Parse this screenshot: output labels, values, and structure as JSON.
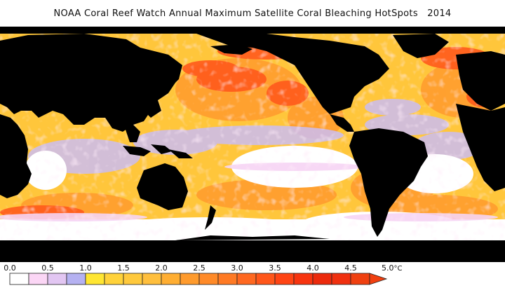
{
  "title": "NOAA Coral Reef Watch Annual Maximum Satellite Coral Bleaching HotSpots   2014",
  "legend": {
    "ticks": [
      "0.0",
      "0.5",
      "1.0",
      "1.5",
      "2.0",
      "2.5",
      "3.0",
      "3.5",
      "4.0",
      "4.5",
      "5.0"
    ],
    "unit": "°C",
    "colors": [
      "#ffffff",
      "#fbd6f5",
      "#e2c6f2",
      "#b5b1f1",
      "#ffe632",
      "#ffd23a",
      "#ffc93c",
      "#ffbf3d",
      "#ffae32",
      "#ff9b2d",
      "#ff8a28",
      "#ff7a24",
      "#ff6820",
      "#ff561a",
      "#ff4414",
      "#f7340f",
      "#ec2a0c",
      "#f0300f",
      "#f04010"
    ],
    "arrow_color": "#f04010"
  },
  "map": {
    "land_color": "#000000",
    "ocean_base_color": "#ffc63b"
  }
}
